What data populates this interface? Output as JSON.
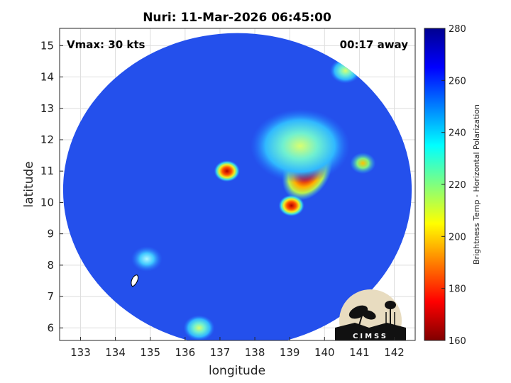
{
  "chart_data": {
    "type": "heatmap",
    "title": "Nuri: 11-Mar-2026 06:45:00",
    "xlabel": "longitude",
    "ylabel": "latitude",
    "xlim": [
      132.4,
      142.6
    ],
    "ylim": [
      5.6,
      15.55
    ],
    "xticks": [
      "133",
      "134",
      "135",
      "136",
      "137",
      "138",
      "139",
      "140",
      "141",
      "142"
    ],
    "yticks": [
      "6",
      "7",
      "8",
      "9",
      "10",
      "11",
      "12",
      "13",
      "14",
      "15"
    ],
    "grid": true,
    "annotation_left": "Vmax: 30 kts",
    "annotation_right": "00:17 away",
    "colorbar": {
      "label": "Brightness Temp - Horizontal Polarization",
      "min": 160,
      "max": 280,
      "ticks": [
        "160",
        "180",
        "200",
        "220",
        "240",
        "260",
        "280"
      ],
      "colormap": "jet"
    },
    "swath": {
      "center": [
        137.5,
        10.4
      ],
      "radius_lon": 5.0,
      "radius_lat": 5.0
    },
    "background_value": 268,
    "features": [
      {
        "name": "main cold core",
        "lon": 139.5,
        "lat": 11.0,
        "min_value": 163
      },
      {
        "name": "cold cell",
        "lon": 137.2,
        "lat": 11.0,
        "min_value": 182
      },
      {
        "name": "cold cell",
        "lon": 139.05,
        "lat": 9.9,
        "min_value": 180
      },
      {
        "name": "cold cell",
        "lon": 141.1,
        "lat": 11.25,
        "min_value": 205
      },
      {
        "name": "warm region",
        "lon": 139.3,
        "lat": 11.8,
        "min_value": 238
      },
      {
        "name": "warm patch",
        "lon": 140.6,
        "lat": 14.2,
        "min_value": 232
      },
      {
        "name": "warm patch",
        "lon": 134.9,
        "lat": 8.2,
        "min_value": 245
      },
      {
        "name": "warm patch",
        "lon": 136.4,
        "lat": 6.0,
        "min_value": 240
      }
    ],
    "track_marker": {
      "lon": 134.55,
      "lat": 7.5
    }
  },
  "logo": {
    "text": "CIMSS"
  }
}
